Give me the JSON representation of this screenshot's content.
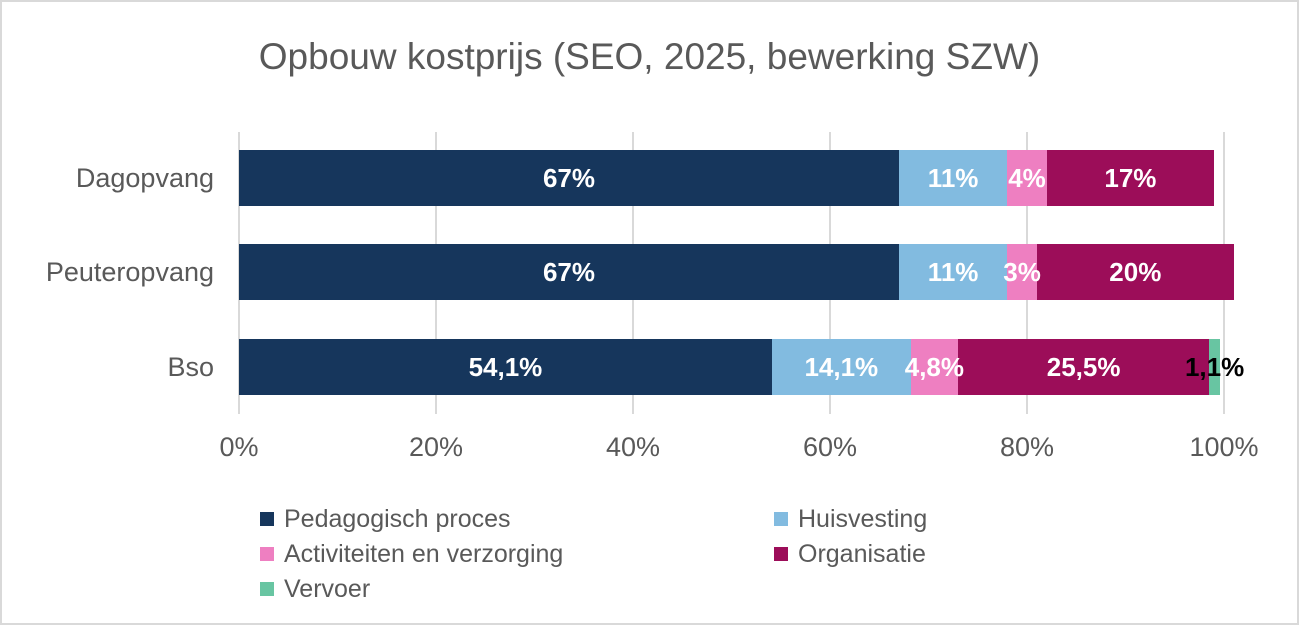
{
  "title": "Opbouw kostprijs (SEO, 2025, bewerking SZW)",
  "colors": {
    "title_text": "#595959",
    "axis_text": "#595959",
    "gridline": "#D9D9D9",
    "frame_border": "#D9D9D9",
    "background": "#FFFFFF"
  },
  "x_axis": {
    "ticks": [
      "0%",
      "20%",
      "40%",
      "60%",
      "80%",
      "100%"
    ],
    "tick_values": [
      0,
      20,
      40,
      60,
      80,
      100
    ]
  },
  "chart_data": {
    "type": "bar",
    "variant": "horizontal-stacked",
    "title": "Opbouw kostprijs (SEO, 2025, bewerking SZW)",
    "categories": [
      "Dagopvang",
      "Peuteropvang",
      "Bso"
    ],
    "series": [
      {
        "name": "Pedagogisch proces",
        "color": "#16365C",
        "label_color": "#FFFFFF",
        "values": [
          67,
          67,
          54.1
        ],
        "labels": [
          "67%",
          "67%",
          "54,1%"
        ]
      },
      {
        "name": "Huisvesting",
        "color": "#82BBE0",
        "label_color": "#FFFFFF",
        "values": [
          11,
          11,
          14.1
        ],
        "labels": [
          "11%",
          "11%",
          "14,1%"
        ]
      },
      {
        "name": "Activiteiten en verzorging",
        "color": "#EE7FC1",
        "label_color": "#FFFFFF",
        "values": [
          4,
          3,
          4.8
        ],
        "labels": [
          "4%",
          "3%",
          "4,8%"
        ]
      },
      {
        "name": "Organisatie",
        "color": "#9C0D59",
        "label_color": "#FFFFFF",
        "values": [
          17,
          20,
          25.5
        ],
        "labels": [
          "17%",
          "20%",
          "25,5%"
        ]
      },
      {
        "name": "Vervoer",
        "color": "#68C5A2",
        "label_color": "#000000",
        "values": [
          0,
          0,
          1.1
        ],
        "labels": [
          "",
          "",
          "1,1%"
        ]
      }
    ],
    "xlabel": "",
    "ylabel": "",
    "xlim": [
      0,
      100
    ],
    "grid": true,
    "legend_position": "bottom",
    "legend_columns": [
      [
        "Pedagogisch proces",
        "Activiteiten en verzorging",
        "Vervoer"
      ],
      [
        "Huisvesting",
        "Organisatie"
      ]
    ]
  }
}
